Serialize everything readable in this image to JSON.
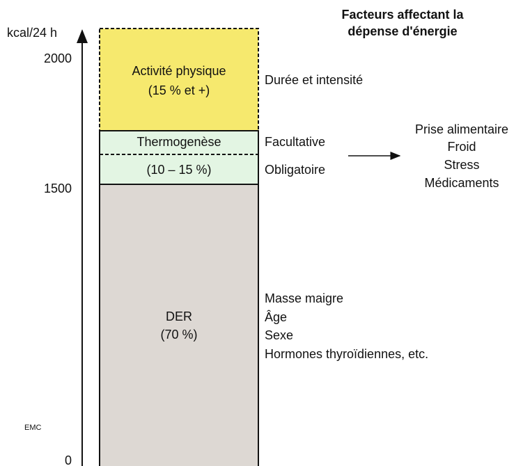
{
  "title": [
    "Facteurs affectant la",
    "dépense d'énergie"
  ],
  "axis": {
    "label": "kcal/24 h",
    "ticks": [
      "2000",
      "1500",
      "0"
    ]
  },
  "segments": {
    "activity": {
      "lines": [
        "Activité physique",
        "(15 % et +)"
      ],
      "factors": [
        "Durée et intensité"
      ]
    },
    "thermogenesis": {
      "lines": [
        "Thermogenèse",
        "(10 – 15 %)"
      ],
      "factors": [
        "Facultative",
        "Obligatoire"
      ]
    },
    "der": {
      "lines": [
        "DER",
        "(70 %)"
      ],
      "factors": [
        "Masse maigre",
        "Âge",
        "Sexe",
        "Hormones thyroïdiennes, etc."
      ]
    }
  },
  "facultative_factors": [
    "Prise alimentaire",
    "Froid",
    "Stress",
    "Médicaments"
  ],
  "logo": "EMC"
}
